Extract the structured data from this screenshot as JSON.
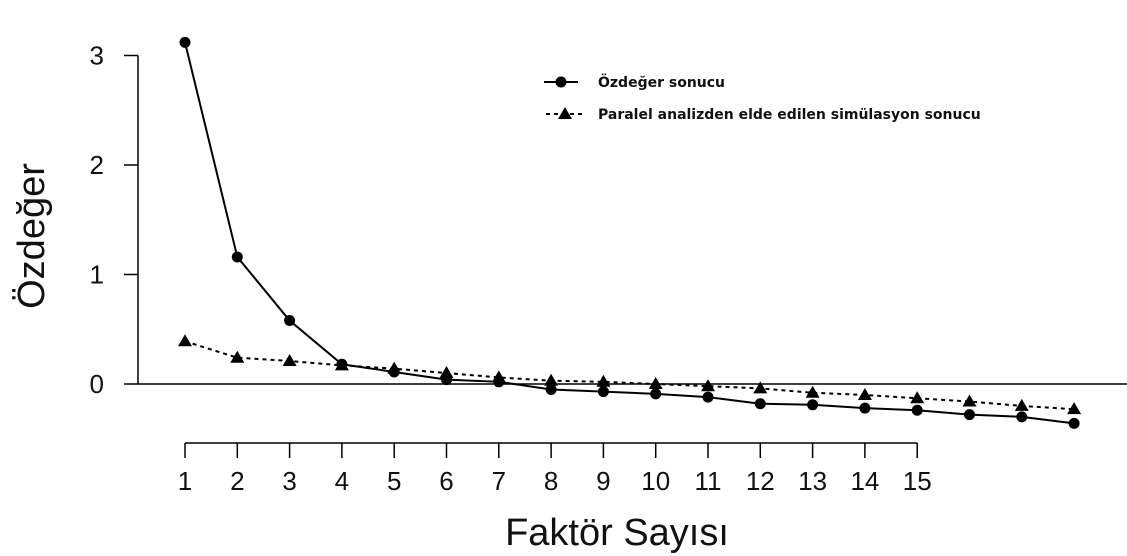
{
  "chart_data": {
    "type": "line",
    "xlabel": "Faktör Sayısı",
    "ylabel": "Özdeğer",
    "x_tick_labels": [
      "1",
      "2",
      "3",
      "4",
      "5",
      "6",
      "7",
      "8",
      "9",
      "10",
      "11",
      "12",
      "13",
      "14",
      "15"
    ],
    "y_tick_labels": [
      "0",
      "1",
      "2",
      "3"
    ],
    "y_ticks": [
      0,
      1,
      2,
      3
    ],
    "ylim": [
      -0.55,
      3.25
    ],
    "legend_position": "top-right",
    "series": [
      {
        "name": "Özdeğer sonucu",
        "marker": "circle",
        "line": "solid",
        "x": [
          1,
          2,
          3,
          4,
          5,
          6,
          7,
          8,
          9,
          10,
          11,
          12,
          13,
          14,
          15,
          16,
          17,
          18
        ],
        "values": [
          3.12,
          1.16,
          0.58,
          0.18,
          0.11,
          0.04,
          0.02,
          -0.05,
          -0.07,
          -0.09,
          -0.12,
          -0.18,
          -0.19,
          -0.22,
          -0.24,
          -0.28,
          -0.3,
          -0.36
        ]
      },
      {
        "name": "Paralel analizden elde edilen simülasyon sonucu",
        "marker": "triangle",
        "line": "dashed",
        "x": [
          1,
          2,
          3,
          4,
          5,
          6,
          7,
          8,
          9,
          10,
          11,
          12,
          13,
          14,
          15,
          16,
          17,
          18
        ],
        "values": [
          0.39,
          0.24,
          0.21,
          0.17,
          0.14,
          0.1,
          0.06,
          0.03,
          0.02,
          0.0,
          -0.02,
          -0.04,
          -0.08,
          -0.1,
          -0.13,
          -0.16,
          -0.2,
          -0.23
        ]
      }
    ],
    "colors": {
      "line": "#000000",
      "axis": "#000000",
      "background": "#ffffff"
    }
  }
}
